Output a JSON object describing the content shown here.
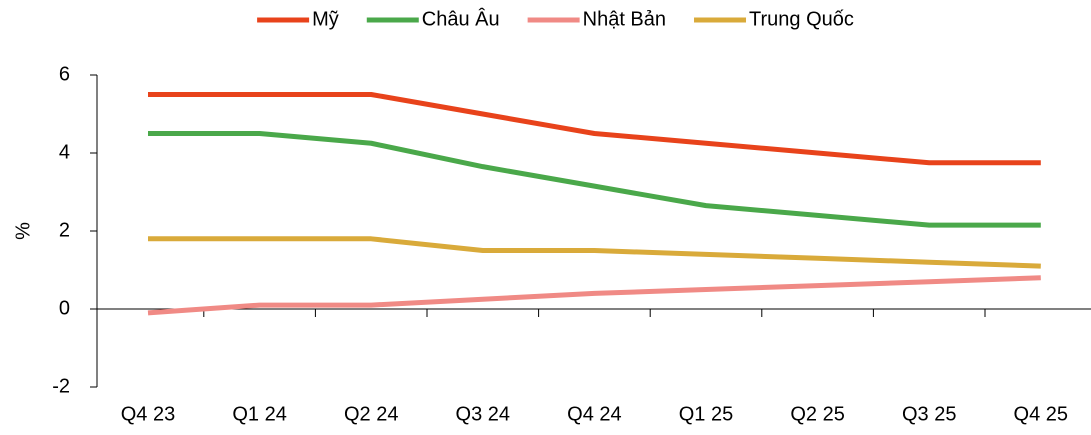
{
  "chart_data": {
    "type": "line",
    "categories": [
      "Q4 23",
      "Q1 24",
      "Q2 24",
      "Q3 24",
      "Q4 24",
      "Q1 25",
      "Q2 25",
      "Q3 25",
      "Q4 25"
    ],
    "y_label": "%",
    "series": [
      {
        "name": "Mỹ",
        "color": "#e8431b",
        "values": [
          5.5,
          5.5,
          5.5,
          5.0,
          4.5,
          4.25,
          4.0,
          3.75,
          3.75
        ]
      },
      {
        "name": "Châu Âu",
        "color": "#4aa84a",
        "values": [
          4.5,
          4.5,
          4.25,
          3.65,
          3.15,
          2.65,
          2.4,
          2.15,
          2.15
        ]
      },
      {
        "name": "Nhật Bản",
        "color": "#f08a85",
        "values": [
          -0.1,
          0.1,
          0.1,
          0.25,
          0.4,
          0.5,
          0.6,
          0.7,
          0.8
        ]
      },
      {
        "name": "Trung Quốc",
        "color": "#d9aa3a",
        "values": [
          1.8,
          1.8,
          1.8,
          1.5,
          1.5,
          1.4,
          1.3,
          1.2,
          1.1
        ]
      }
    ],
    "ylim": [
      -2,
      6
    ],
    "yticks": [
      -2,
      0,
      2,
      4,
      6
    ],
    "legend": "top"
  }
}
